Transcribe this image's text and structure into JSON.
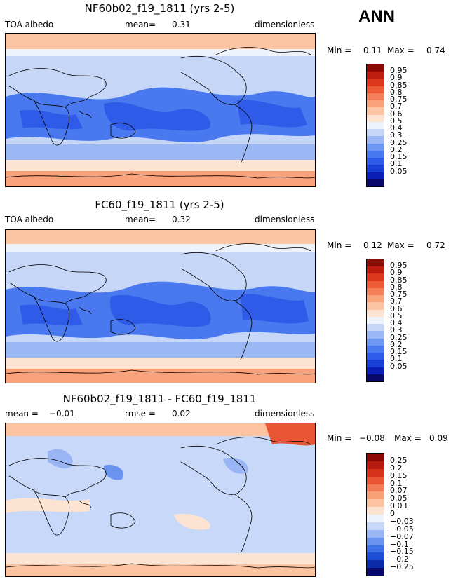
{
  "season": "ANN",
  "palette_abs": [
    "#08086b",
    "#0a1eb5",
    "#1a3fd6",
    "#2f5be8",
    "#4a78ee",
    "#6e97f2",
    "#9bb7f4",
    "#c6d6f7",
    "#eef2fa",
    "#fde4d2",
    "#fbc4a2",
    "#f8a37b",
    "#f37f58",
    "#ec5a35",
    "#dc371c",
    "#bd1c10",
    "#8b0a05"
  ],
  "palette_diff": [
    "#08086b",
    "#0a2ca8",
    "#1f4fd6",
    "#3d6fe6",
    "#6a93ef",
    "#9ab5f3",
    "#c8d8f8",
    "#eef2fa",
    "#fde4d2",
    "#fbc3a0",
    "#f8a179",
    "#f27c55",
    "#e95633",
    "#d7331b",
    "#b51a0e",
    "#8b0a05"
  ],
  "panels": [
    {
      "title": "NF60b02_f19_1811 (yrs 2-5)",
      "left_label": "TOA albedo",
      "mean_label": "mean=",
      "mean_value": "0.31",
      "units": "dimensionless",
      "min_label": "Min =",
      "min_value": "0.11",
      "max_label": "Max =",
      "max_value": "0.74",
      "levels": [
        "0.95",
        "0.9",
        "0.85",
        "0.8",
        "0.75",
        "0.7",
        "0.6",
        "0.5",
        "0.4",
        "0.3",
        "0.25",
        "0.2",
        "0.15",
        "0.1",
        "0.05"
      ]
    },
    {
      "title": "FC60_f19_1811 (yrs 2-5)",
      "left_label": "TOA albedo",
      "mean_label": "mean=",
      "mean_value": "0.32",
      "units": "dimensionless",
      "min_label": "Min =",
      "min_value": "0.12",
      "max_label": "Max =",
      "max_value": "0.72",
      "levels": [
        "0.95",
        "0.9",
        "0.85",
        "0.8",
        "0.75",
        "0.7",
        "0.6",
        "0.5",
        "0.4",
        "0.3",
        "0.25",
        "0.2",
        "0.15",
        "0.1",
        "0.05"
      ]
    },
    {
      "title": "NF60b02_f19_1811 - FC60_f19_1811",
      "left_label": "mean =",
      "left_value": "−0.01",
      "rmse_label": "rmse =",
      "rmse_value": "0.02",
      "units": "dimensionless",
      "min_label": "Min =",
      "min_value": "−0.08",
      "max_label": "Max =",
      "max_value": "0.09",
      "levels": [
        "0.25",
        "0.2",
        "0.15",
        "0.1",
        "0.07",
        "0.05",
        "0.03",
        "0",
        "−0.03",
        "−0.05",
        "−0.07",
        "−0.1",
        "−0.15",
        "−0.2",
        "−0.25"
      ]
    }
  ]
}
